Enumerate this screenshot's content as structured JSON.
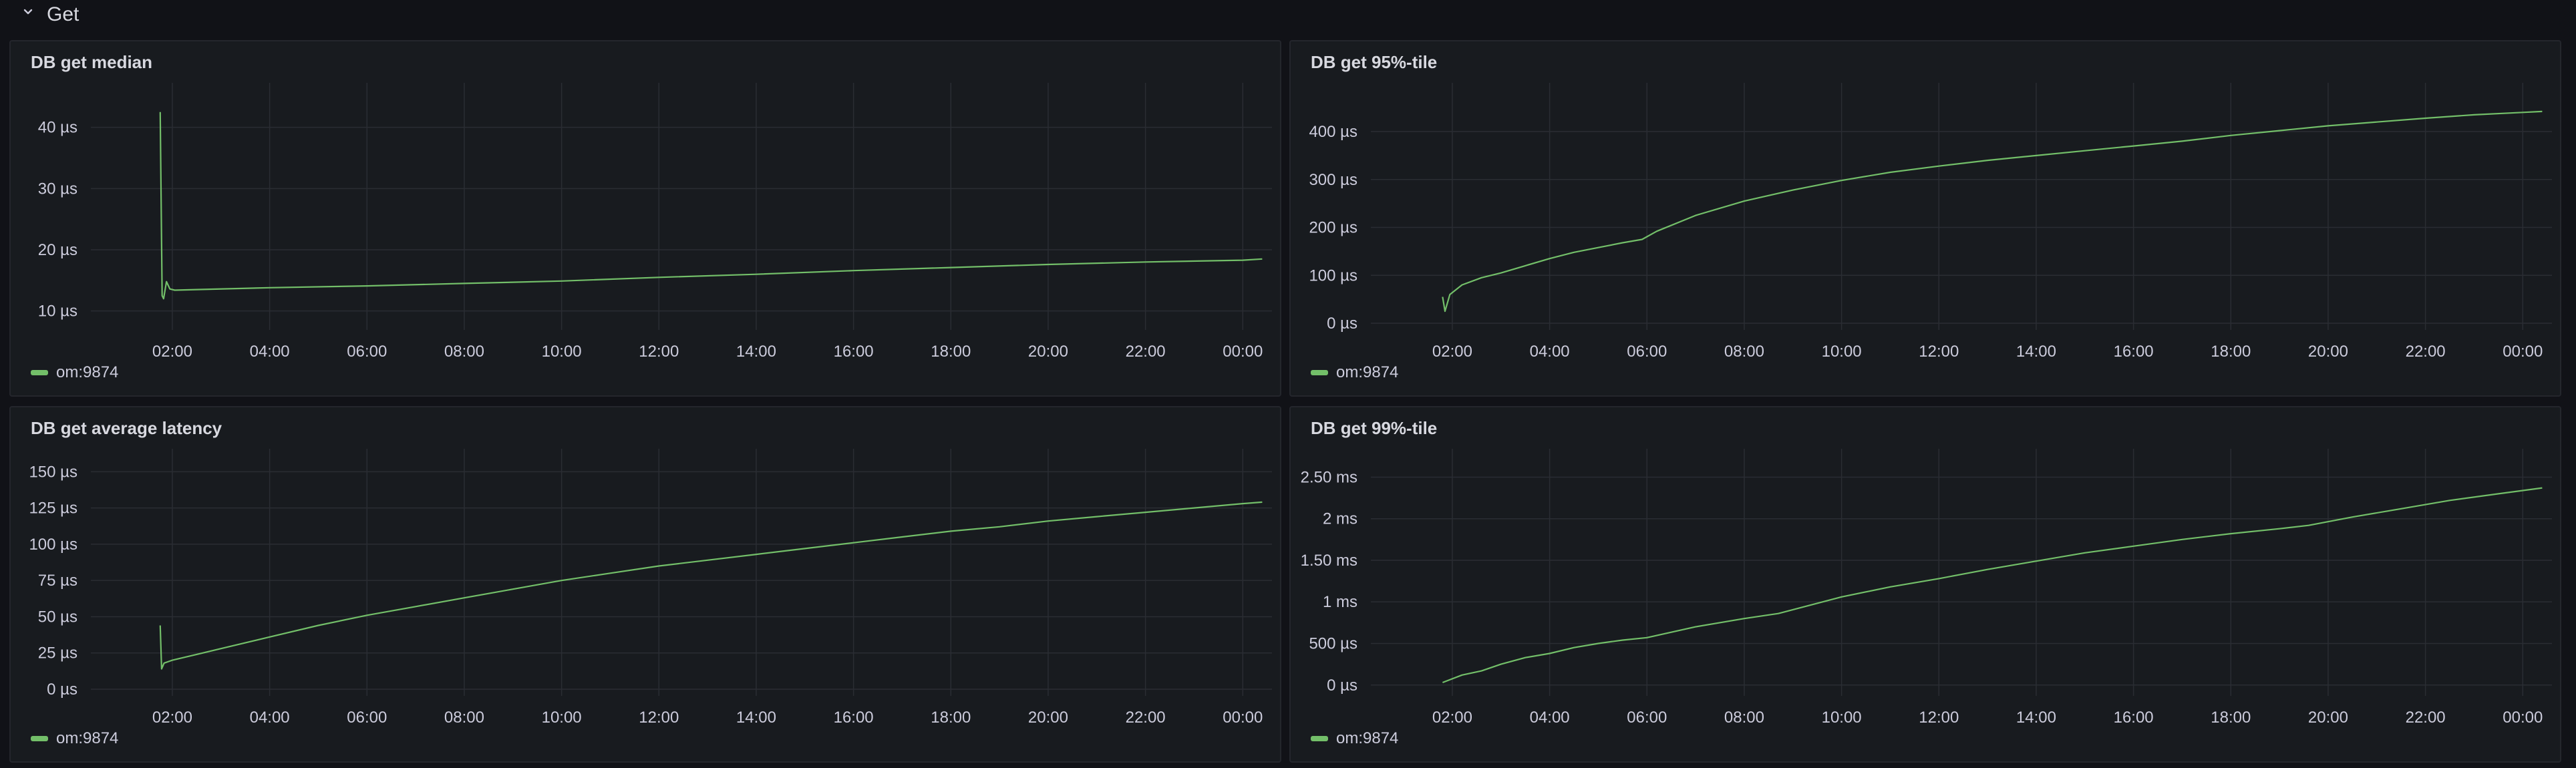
{
  "row": {
    "title": "Get",
    "icon": "chevron-down-icon"
  },
  "colors": {
    "series": "#73bf69",
    "grid": "#2a2d33",
    "background": "#181b1f"
  },
  "panels": [
    {
      "title": "DB get median",
      "legend": "om:9874",
      "chart_data": {
        "type": "line",
        "title": "DB get median",
        "x_ticks": [
          "02:00",
          "04:00",
          "06:00",
          "08:00",
          "10:00",
          "12:00",
          "14:00",
          "16:00",
          "18:00",
          "20:00",
          "22:00",
          "00:00"
        ],
        "y_ticks": [
          "10 µs",
          "20 µs",
          "30 µs",
          "40 µs"
        ],
        "y_tick_values": [
          10,
          20,
          30,
          40
        ],
        "ylim": [
          8,
          44
        ],
        "x_unit": "hours since 00:00",
        "series": [
          {
            "name": "om:9874",
            "x": [
              1.75,
              1.79,
              1.82,
              1.88,
              1.95,
              2.05,
              2.5,
              4,
              6,
              8,
              10,
              12,
              14,
              16,
              18,
              20,
              22,
              24,
              24.4
            ],
            "y": [
              42.5,
              12.5,
              12.0,
              14.8,
              13.6,
              13.4,
              13.5,
              13.8,
              14.1,
              14.5,
              14.9,
              15.5,
              16.0,
              16.6,
              17.1,
              17.6,
              18.0,
              18.3,
              18.5
            ]
          }
        ]
      }
    },
    {
      "title": "DB get 95%-tile",
      "legend": "om:9874",
      "chart_data": {
        "type": "line",
        "title": "DB get 95%-tile",
        "x_ticks": [
          "02:00",
          "04:00",
          "06:00",
          "08:00",
          "10:00",
          "12:00",
          "14:00",
          "16:00",
          "18:00",
          "20:00",
          "22:00",
          "00:00"
        ],
        "y_ticks": [
          "0 µs",
          "100 µs",
          "200 µs",
          "300 µs",
          "400 µs"
        ],
        "y_tick_values": [
          0,
          100,
          200,
          300,
          400
        ],
        "ylim": [
          0,
          460
        ],
        "series": [
          {
            "name": "om:9874",
            "x": [
              1.8,
              1.85,
              1.95,
              2.2,
              2.6,
              3,
              3.5,
              4,
              4.5,
              5,
              5.5,
              5.9,
              6.2,
              7,
              8,
              9,
              10,
              11,
              12,
              13,
              14,
              15,
              16,
              17,
              18,
              19,
              20,
              21,
              22,
              23,
              24,
              24.4
            ],
            "y": [
              55,
              25,
              60,
              80,
              95,
              105,
              120,
              135,
              148,
              158,
              168,
              175,
              192,
              225,
              255,
              278,
              298,
              315,
              328,
              340,
              350,
              360,
              370,
              380,
              392,
              402,
              412,
              420,
              428,
              435,
              440,
              442
            ]
          }
        ]
      }
    },
    {
      "title": "DB get average latency",
      "legend": "om:9874",
      "chart_data": {
        "type": "line",
        "title": "DB get average latency",
        "x_ticks": [
          "02:00",
          "04:00",
          "06:00",
          "08:00",
          "10:00",
          "12:00",
          "14:00",
          "16:00",
          "18:00",
          "20:00",
          "22:00",
          "00:00"
        ],
        "y_ticks": [
          "0 µs",
          "25 µs",
          "50 µs",
          "75 µs",
          "100 µs",
          "125 µs",
          "150 µs"
        ],
        "y_tick_values": [
          0,
          25,
          50,
          75,
          100,
          125,
          150
        ],
        "ylim": [
          0,
          152
        ],
        "series": [
          {
            "name": "om:9874",
            "x": [
              1.75,
              1.78,
              1.83,
              2.0,
              2.5,
              3,
              4,
              5,
              6,
              7,
              8,
              9,
              10,
              11,
              12,
              13,
              14,
              15,
              16,
              17,
              18,
              19,
              20,
              21,
              22,
              23,
              24,
              24.4
            ],
            "y": [
              44,
              14,
              18,
              20,
              24,
              28,
              36,
              44,
              51,
              57,
              63,
              69,
              75,
              80,
              85,
              89,
              93,
              97,
              101,
              105,
              109,
              112,
              116,
              119,
              122,
              125,
              128,
              129
            ]
          }
        ]
      }
    },
    {
      "title": "DB get 99%-tile",
      "legend": "om:9874",
      "chart_data": {
        "type": "line",
        "title": "DB get 99%-tile",
        "x_ticks": [
          "02:00",
          "04:00",
          "06:00",
          "08:00",
          "10:00",
          "12:00",
          "14:00",
          "16:00",
          "18:00",
          "20:00",
          "22:00",
          "00:00"
        ],
        "y_ticks": [
          "0 µs",
          "500 µs",
          "1 ms",
          "1.50 ms",
          "2 ms",
          "2.50 ms"
        ],
        "y_tick_values": [
          0,
          0.5,
          1,
          1.5,
          2,
          2.5
        ],
        "ylim": [
          -0.05,
          2.6
        ],
        "series": [
          {
            "name": "om:9874",
            "x": [
              1.8,
              2.2,
              2.6,
              3,
              3.5,
              4,
              4.5,
              5,
              5.5,
              6,
              7,
              8,
              8.7,
              10,
              11,
              12,
              13,
              14,
              15,
              16,
              17,
              18,
              19,
              19.6,
              20.5,
              21.5,
              22.5,
              23.5,
              24.4
            ],
            "y": [
              0.03,
              0.12,
              0.17,
              0.25,
              0.33,
              0.38,
              0.45,
              0.5,
              0.54,
              0.57,
              0.7,
              0.8,
              0.86,
              1.06,
              1.18,
              1.28,
              1.39,
              1.49,
              1.59,
              1.67,
              1.75,
              1.82,
              1.88,
              1.92,
              2.02,
              2.12,
              2.22,
              2.3,
              2.37
            ]
          }
        ]
      }
    }
  ]
}
